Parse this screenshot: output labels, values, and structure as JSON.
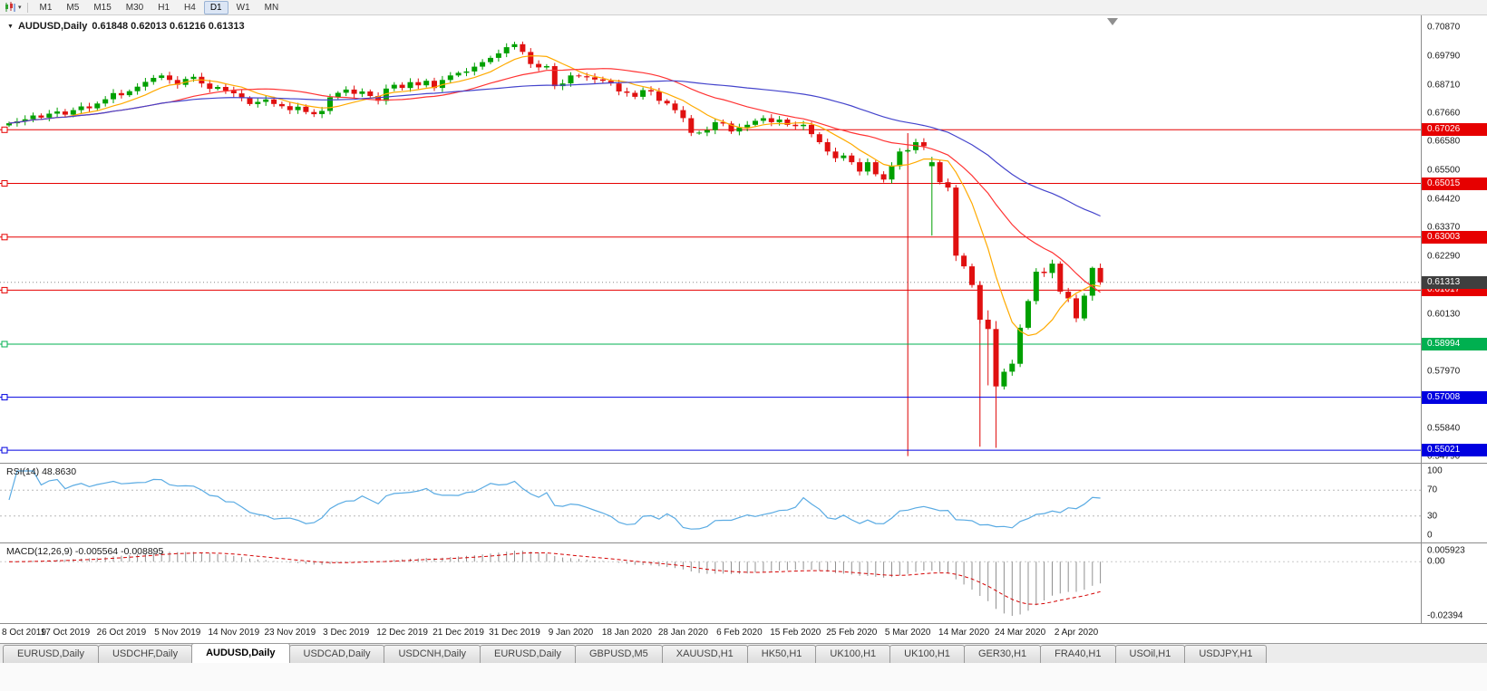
{
  "toolbar": {
    "timeframes": [
      "M1",
      "M5",
      "M15",
      "M30",
      "H1",
      "H4",
      "D1",
      "W1",
      "MN"
    ],
    "active": "D1"
  },
  "chart": {
    "symbol_period": "AUDUSD,Daily",
    "ohlc_text": "0.61848 0.62013 0.61216 0.61313",
    "ylim": [
      0.5455,
      0.7131
    ],
    "up_color": "#00a000",
    "down_color": "#e01010",
    "chart_data": {
      "type": "candlestick",
      "closes": [
        0.6727,
        0.6734,
        0.6742,
        0.6756,
        0.6748,
        0.6763,
        0.6771,
        0.6759,
        0.6776,
        0.679,
        0.6783,
        0.6801,
        0.6817,
        0.684,
        0.6832,
        0.6847,
        0.6864,
        0.6882,
        0.6897,
        0.6906,
        0.6889,
        0.6871,
        0.6893,
        0.6901,
        0.6876,
        0.6856,
        0.6863,
        0.6849,
        0.6839,
        0.6821,
        0.6799,
        0.6807,
        0.6816,
        0.6799,
        0.6791,
        0.6776,
        0.6789,
        0.6769,
        0.6761,
        0.6773,
        0.6824,
        0.6841,
        0.6853,
        0.6837,
        0.6846,
        0.6829,
        0.6811,
        0.6857,
        0.6871,
        0.6859,
        0.6881,
        0.6869,
        0.6886,
        0.6859,
        0.6889,
        0.6906,
        0.6916,
        0.6921,
        0.6939,
        0.6956,
        0.6972,
        0.6989,
        0.7012,
        0.7023,
        0.6994,
        0.6949,
        0.6936,
        0.6941,
        0.6866,
        0.6876,
        0.6906,
        0.6903,
        0.6899,
        0.6891,
        0.6886,
        0.6876,
        0.6846,
        0.6841,
        0.6826,
        0.6851,
        0.6846,
        0.6811,
        0.6801,
        0.6776,
        0.6746,
        0.6691,
        0.6692,
        0.6701,
        0.6731,
        0.6726,
        0.6696,
        0.6711,
        0.6721,
        0.6736,
        0.6746,
        0.6731,
        0.6741,
        0.6721,
        0.6716,
        0.6721,
        0.6686,
        0.6656,
        0.6621,
        0.6596,
        0.6606,
        0.6581,
        0.6546,
        0.6581,
        0.6536,
        0.6516,
        0.6566,
        0.6621,
        0.6626,
        0.6656,
        0.6641,
        0.6581,
        0.6506,
        0.6486,
        0.6231,
        0.6191,
        0.6121,
        0.5991,
        0.5956,
        0.5741,
        0.5796,
        0.5826,
        0.5961,
        0.6061,
        0.6171,
        0.6166,
        0.6201,
        0.6096,
        0.6071,
        0.5996,
        0.6081,
        0.6185,
        0.6131
      ],
      "ohlc_overrides": {
        "115": [
          0.6566,
          0.6601,
          0.6306,
          0.6581
        ],
        "118": [
          0.6486,
          0.6496,
          0.6211,
          0.6231
        ],
        "122": [
          0.5991,
          0.6026,
          0.5745,
          0.5956
        ],
        "123": [
          0.5956,
          0.5986,
          0.5511,
          0.5741
        ],
        "130": [
          0.6166,
          0.6216,
          0.6146,
          0.6201
        ],
        "135": [
          0.6081,
          0.619,
          0.6062,
          0.6185
        ],
        "136": [
          0.61848,
          0.62013,
          0.61216,
          0.61313
        ]
      }
    },
    "ma_lines": [
      {
        "period": 8,
        "color": "#ffaa00"
      },
      {
        "period": 21,
        "color": "#ff3333"
      },
      {
        "period": 44,
        "color": "#4444cc"
      }
    ],
    "hlines": [
      {
        "value": 0.67026,
        "label": "0.67026",
        "color": "#e60000"
      },
      {
        "value": 0.65015,
        "label": "0.65015",
        "color": "#e60000"
      },
      {
        "value": 0.63003,
        "label": "0.63003",
        "color": "#e60000"
      },
      {
        "value": 0.61017,
        "label": "0.61017",
        "color": "#e60000"
      },
      {
        "value": 0.58994,
        "label": "0.58994",
        "color": "#00b050"
      },
      {
        "value": 0.57008,
        "label": "0.57008",
        "color": "#0000e0"
      },
      {
        "value": 0.55021,
        "label": "0.55021",
        "color": "#0000e0"
      }
    ],
    "price_line": {
      "value": 0.61313,
      "label": "0.61313",
      "color": "#3f3f3f"
    },
    "vlines": [
      {
        "index": 112,
        "from": 0.669,
        "to": 0.548,
        "color": "#dd0000"
      },
      {
        "index": 121,
        "from": 0.6135,
        "to": 0.5515,
        "color": "#dd0000"
      }
    ],
    "axis_values": [
      "0.70870",
      "0.69790",
      "0.68710",
      "0.67660",
      "0.66580",
      "0.65500",
      "0.64420",
      "0.63370",
      "0.62290",
      "0.61210",
      "0.60130",
      "0.59050",
      "0.57970",
      "0.56890",
      "0.55840",
      "0.54790"
    ],
    "x_labels": [
      "8 Oct 2019",
      "17 Oct 2019",
      "26 Oct 2019",
      "5 Nov 2019",
      "14 Nov 2019",
      "23 Nov 2019",
      "3 Dec 2019",
      "12 Dec 2019",
      "21 Dec 2019",
      "31 Dec 2019",
      "9 Jan 2020",
      "18 Jan 2020",
      "28 Jan 2020",
      "6 Feb 2020",
      "15 Feb 2020",
      "25 Feb 2020",
      "5 Mar 2020",
      "14 Mar 2020",
      "24 Mar 2020",
      "2 Apr 2020"
    ],
    "x_label_step": 7,
    "shift_marker_x": 1227
  },
  "rsi": {
    "label": "RSI(14) 48.8630",
    "period": 14,
    "color": "#5aabe3",
    "axis_labels": [
      "100",
      "70",
      "30",
      "0"
    ],
    "level_lines": [
      70,
      30
    ]
  },
  "macd": {
    "label": "MACD(12,26,9) -0.005564 -0.008895",
    "fast": 12,
    "slow": 26,
    "signal": 9,
    "hist_color": "#909090",
    "signal_color": "#d40000",
    "axis_top": "0.005923",
    "axis_zero": "0.00",
    "axis_bottom": "-0.02394"
  },
  "tabs": {
    "items": [
      "EURUSD,Daily",
      "USDCHF,Daily",
      "AUDUSD,Daily",
      "USDCAD,Daily",
      "USDCNH,Daily",
      "EURUSD,Daily",
      "GBPUSD,M5",
      "XAUUSD,H1",
      "HK50,H1",
      "UK100,H1",
      "UK100,H1",
      "GER30,H1",
      "FRA40,H1",
      "USOil,H1",
      "USDJPY,H1"
    ],
    "active_index": 2
  }
}
